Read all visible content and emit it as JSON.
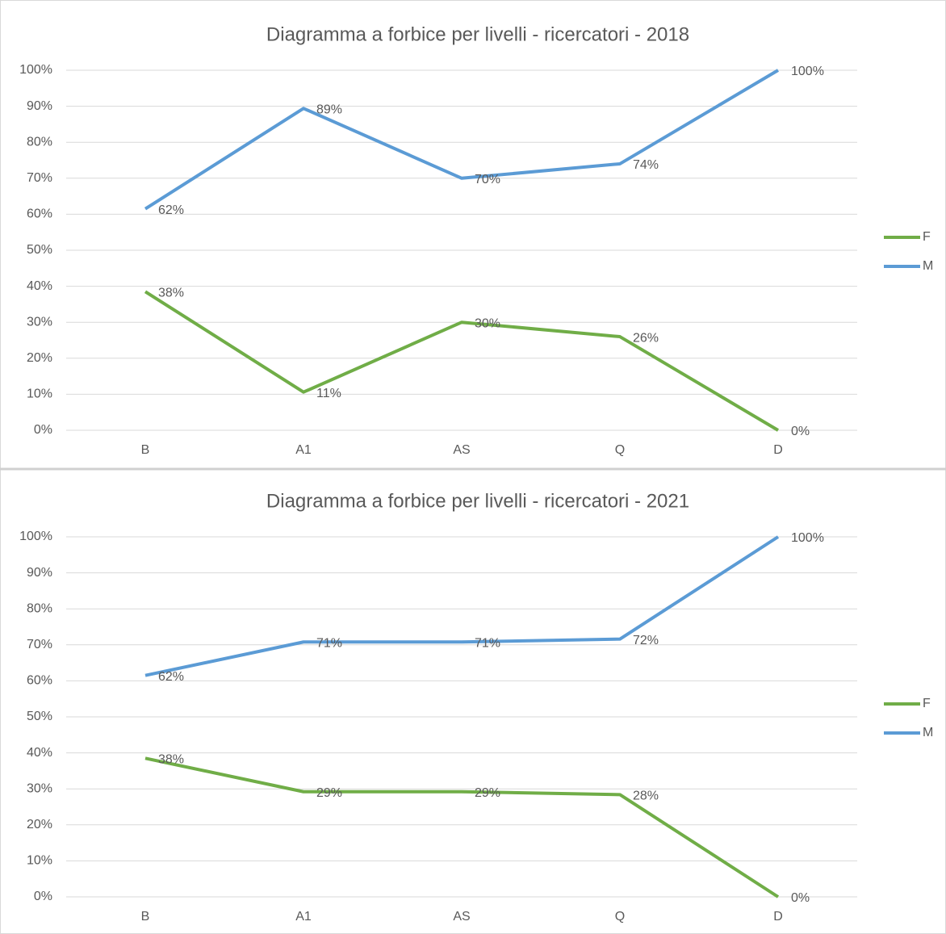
{
  "chart_data": [
    {
      "type": "line",
      "title": "Diagramma a forbice per livelli - ricercatori - 2018",
      "categories": [
        "B",
        "A1",
        "AS",
        "Q",
        "D"
      ],
      "series": [
        {
          "name": "F",
          "color": "#70ad47",
          "values": [
            38.5,
            10.6,
            30,
            26,
            0
          ],
          "value_labels": [
            "38%",
            "11%",
            "30%",
            "26%",
            "0%"
          ]
        },
        {
          "name": "M",
          "color": "#5b9bd5",
          "values": [
            61.5,
            89.4,
            70,
            74,
            100
          ],
          "value_labels": [
            "62%",
            "89%",
            "70%",
            "74%",
            "100%"
          ]
        }
      ],
      "ylim": [
        0,
        100
      ],
      "yticks": [
        {
          "value": 0,
          "label": "0%"
        },
        {
          "value": 10,
          "label": "10%"
        },
        {
          "value": 20,
          "label": "20%"
        },
        {
          "value": 30,
          "label": "30%"
        },
        {
          "value": 40,
          "label": "40%"
        },
        {
          "value": 50,
          "label": "50%"
        },
        {
          "value": 60,
          "label": "60%"
        },
        {
          "value": 70,
          "label": "70%"
        },
        {
          "value": 80,
          "label": "80%"
        },
        {
          "value": 90,
          "label": "90%"
        },
        {
          "value": 100,
          "label": "100%"
        }
      ],
      "grid": true,
      "legend": "right"
    },
    {
      "type": "line",
      "title": "Diagramma a forbice per livelli - ricercatori - 2021",
      "categories": [
        "B",
        "A1",
        "AS",
        "Q",
        "D"
      ],
      "series": [
        {
          "name": "F",
          "color": "#70ad47",
          "values": [
            38.5,
            29.2,
            29.2,
            28.4,
            0
          ],
          "value_labels": [
            "38%",
            "29%",
            "29%",
            "28%",
            "0%"
          ]
        },
        {
          "name": "M",
          "color": "#5b9bd5",
          "values": [
            61.5,
            70.8,
            70.8,
            71.6,
            100
          ],
          "value_labels": [
            "62%",
            "71%",
            "71%",
            "72%",
            "100%"
          ]
        }
      ],
      "ylim": [
        0,
        100
      ],
      "yticks": [
        {
          "value": 0,
          "label": "0%"
        },
        {
          "value": 10,
          "label": "10%"
        },
        {
          "value": 20,
          "label": "20%"
        },
        {
          "value": 30,
          "label": "30%"
        },
        {
          "value": 40,
          "label": "40%"
        },
        {
          "value": 50,
          "label": "50%"
        },
        {
          "value": 60,
          "label": "60%"
        },
        {
          "value": 70,
          "label": "70%"
        },
        {
          "value": 80,
          "label": "80%"
        },
        {
          "value": 90,
          "label": "90%"
        },
        {
          "value": 100,
          "label": "100%"
        }
      ],
      "grid": true,
      "legend": "right"
    }
  ]
}
